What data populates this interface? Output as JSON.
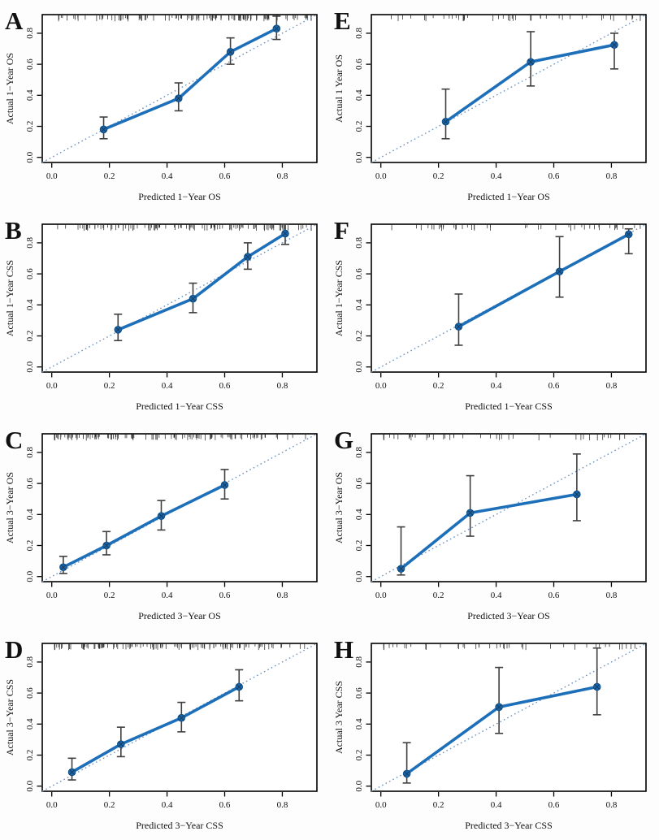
{
  "figure": {
    "kind": "nomogram-calibration-figure",
    "panel_letters": [
      "A",
      "B",
      "C",
      "D",
      "E",
      "F",
      "G",
      "H"
    ]
  },
  "chart_data": {
    "type": "line",
    "subtype": "calibration-curves-with-error-bars",
    "legend_position": "none",
    "grid": false,
    "axis_range": [
      -0.033,
      0.92
    ],
    "tick_values": [
      0.0,
      0.2,
      0.4,
      0.6,
      0.8
    ],
    "tick_labels": [
      "0.0",
      "0.2",
      "0.4",
      "0.6",
      "0.8"
    ],
    "colors": {
      "line": "#1c6fb8",
      "point_fill": "#1a66ad",
      "point_stroke": "#0f4f86",
      "error_bar": "#3f3f3f",
      "diagonal": "#6d92c0",
      "box": "#000000",
      "rug": "#111111"
    },
    "panels": [
      {
        "id": "A",
        "xlabel": "Predicted 1−Year OS",
        "ylabel": "Actual 1−Year OS",
        "x": [
          0.18,
          0.44,
          0.62,
          0.78
        ],
        "y": [
          0.18,
          0.38,
          0.68,
          0.83
        ],
        "lo": [
          0.12,
          0.3,
          0.6,
          0.76
        ],
        "hi": [
          0.26,
          0.48,
          0.77,
          0.91
        ],
        "rug_count": 120,
        "rug_seed": 7
      },
      {
        "id": "E",
        "xlabel": "Predicted 1−Year OS",
        "ylabel": "Actual 1  Year OS",
        "x": [
          0.225,
          0.52,
          0.81
        ],
        "y": [
          0.23,
          0.615,
          0.725
        ],
        "lo": [
          0.12,
          0.46,
          0.57
        ],
        "hi": [
          0.44,
          0.81,
          0.8
        ],
        "rug_count": 44,
        "rug_seed": 41
      },
      {
        "id": "B",
        "xlabel": "Predicted 1−Year CSS",
        "ylabel": "Actual 1−Year CSS",
        "x": [
          0.23,
          0.49,
          0.68,
          0.81
        ],
        "y": [
          0.24,
          0.44,
          0.71,
          0.86
        ],
        "lo": [
          0.17,
          0.35,
          0.63,
          0.79
        ],
        "hi": [
          0.34,
          0.54,
          0.8,
          0.92
        ],
        "rug_count": 120,
        "rug_seed": 13
      },
      {
        "id": "F",
        "xlabel": "Predicted 1−Year CSS",
        "ylabel": "Actual 1−Year CSS",
        "x": [
          0.27,
          0.62,
          0.86
        ],
        "y": [
          0.26,
          0.615,
          0.855
        ],
        "lo": [
          0.14,
          0.45,
          0.73
        ],
        "hi": [
          0.47,
          0.84,
          0.89
        ],
        "rug_count": 44,
        "rug_seed": 47
      },
      {
        "id": "C",
        "xlabel": "Predicted 3−Year OS",
        "ylabel": "Actual 3−Year OS",
        "x": [
          0.04,
          0.19,
          0.38,
          0.6
        ],
        "y": [
          0.06,
          0.2,
          0.39,
          0.59
        ],
        "lo": [
          0.02,
          0.14,
          0.3,
          0.5
        ],
        "hi": [
          0.13,
          0.29,
          0.49,
          0.69
        ],
        "rug_count": 120,
        "rug_seed": 21
      },
      {
        "id": "G",
        "xlabel": "Predicted 3−Year OS",
        "ylabel": "Actual 3−Year OS",
        "x": [
          0.07,
          0.31,
          0.68
        ],
        "y": [
          0.05,
          0.41,
          0.53
        ],
        "lo": [
          0.01,
          0.26,
          0.36
        ],
        "hi": [
          0.32,
          0.65,
          0.79
        ],
        "rug_count": 44,
        "rug_seed": 53
      },
      {
        "id": "D",
        "xlabel": "Predicted 3−Year CSS",
        "ylabel": "Actual 3−Year CSS",
        "x": [
          0.07,
          0.24,
          0.45,
          0.65
        ],
        "y": [
          0.09,
          0.27,
          0.44,
          0.64
        ],
        "lo": [
          0.04,
          0.19,
          0.35,
          0.55
        ],
        "hi": [
          0.18,
          0.38,
          0.54,
          0.75
        ],
        "rug_count": 120,
        "rug_seed": 31
      },
      {
        "id": "H",
        "xlabel": "Predicted 3−Year CSS",
        "ylabel": "Actual 3  Year CSS",
        "x": [
          0.09,
          0.41,
          0.75
        ],
        "y": [
          0.08,
          0.51,
          0.64
        ],
        "lo": [
          0.02,
          0.34,
          0.46
        ],
        "hi": [
          0.28,
          0.765,
          0.89
        ],
        "rug_count": 44,
        "rug_seed": 59
      }
    ]
  }
}
